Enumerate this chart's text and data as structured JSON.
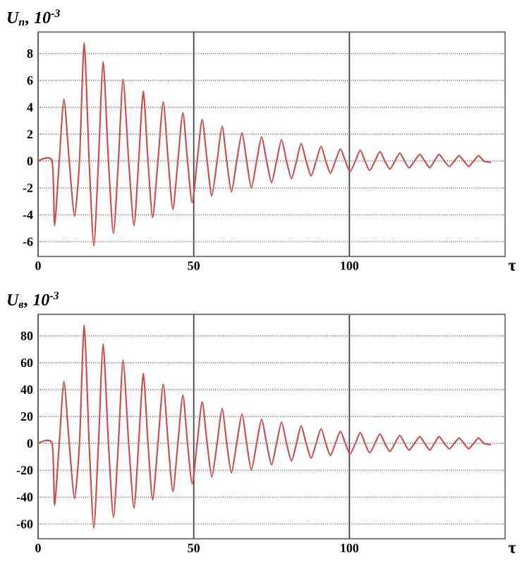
{
  "chart_data": [
    {
      "type": "line",
      "ylabel": "U$_{п}$, 10$^{-3}$",
      "xlabel": "τ",
      "xlim": [
        0,
        150
      ],
      "ylim": [
        -7.1,
        9.6
      ],
      "xticks": [
        0,
        50,
        100
      ],
      "yticks": [
        -6,
        -4,
        -2,
        0,
        2,
        4,
        6,
        8
      ],
      "grid": true,
      "x": [
        0,
        4.5,
        5.3,
        6.8,
        8.3,
        10.0,
        11.7,
        13.3,
        14.8,
        16.4,
        17.9,
        19.4,
        20.9,
        22.6,
        24.2,
        25.8,
        27.3,
        29.1,
        30.8,
        32.3,
        33.8,
        35.3,
        36.8,
        38.5,
        40.2,
        41.8,
        43.3,
        44.9,
        46.5,
        48.0,
        49.5,
        51.1,
        52.7,
        54.3,
        55.8,
        57.5,
        59.1,
        60.6,
        62.1,
        63.8,
        65.5,
        67.0,
        68.5,
        70.2,
        71.8,
        73.4,
        75,
        76.6,
        78.2,
        79.8,
        81.4,
        83.0,
        84.5,
        86.1,
        87.7,
        89.3,
        90.9,
        92.4,
        93.9,
        95.5,
        97.1,
        98.7,
        100.2,
        101.9,
        103.5,
        105.0,
        106.5,
        108.2,
        109.8,
        111.4,
        113,
        114.6,
        116.2,
        117.7,
        119.2,
        120.9,
        122.6,
        124.2,
        125.8,
        127.3,
        128.8,
        130.5,
        132.1,
        133.7,
        135.2,
        136.8,
        138.3,
        139.9,
        141.5,
        143.2,
        145.5
      ],
      "series": [
        {
          "color": "#c8504e",
          "values": [
            0,
            0,
            -4.8,
            0,
            4.6,
            0,
            -4.1,
            0,
            8.8,
            0,
            -6.3,
            0,
            7.4,
            0,
            -5.4,
            0,
            6.1,
            0,
            -4.8,
            0,
            5.2,
            0,
            -4.2,
            0,
            4.4,
            0,
            -3.6,
            0,
            3.6,
            0,
            -3.1,
            0,
            3.1,
            0,
            -2.6,
            0,
            2.6,
            0,
            -2.3,
            0,
            2.1,
            0,
            -2.0,
            0,
            1.8,
            0,
            -1.6,
            0,
            1.6,
            0,
            -1.3,
            0,
            1.3,
            0,
            -1.1,
            0,
            1.1,
            0,
            -0.9,
            0,
            0.9,
            0,
            -0.8,
            0,
            0.8,
            0,
            -0.7,
            0,
            0.7,
            0,
            -0.6,
            0,
            0.6,
            0,
            -0.5,
            0,
            0.5,
            0,
            -0.5,
            0,
            0.5,
            0,
            -0.4,
            0,
            0.4,
            0,
            -0.4,
            0,
            0.4,
            0,
            -0.1
          ]
        }
      ]
    },
    {
      "type": "line",
      "ylabel": "U$_{в}$, 10$^{-3}$",
      "xlabel": "τ",
      "xlim": [
        0,
        150
      ],
      "ylim": [
        -71,
        96
      ],
      "xticks": [
        0,
        50,
        100
      ],
      "yticks": [
        -60,
        -40,
        -20,
        0,
        20,
        40,
        60,
        80
      ],
      "grid": true,
      "x": [
        0,
        4.5,
        5.3,
        6.8,
        8.3,
        10.0,
        11.7,
        13.3,
        14.8,
        16.4,
        17.9,
        19.4,
        20.9,
        22.6,
        24.2,
        25.8,
        27.3,
        29.1,
        30.8,
        32.3,
        33.8,
        35.3,
        36.8,
        38.5,
        40.2,
        41.8,
        43.3,
        44.9,
        46.5,
        48.0,
        49.5,
        51.1,
        52.7,
        54.3,
        55.8,
        57.5,
        59.1,
        60.6,
        62.1,
        63.8,
        65.5,
        67.0,
        68.5,
        70.2,
        71.8,
        73.4,
        75,
        76.6,
        78.2,
        79.8,
        81.4,
        83.0,
        84.5,
        86.1,
        87.7,
        89.3,
        90.9,
        92.4,
        93.9,
        95.5,
        97.1,
        98.7,
        100.2,
        101.9,
        103.5,
        105.0,
        106.5,
        108.2,
        109.8,
        111.4,
        113,
        114.6,
        116.2,
        117.7,
        119.2,
        120.9,
        122.6,
        124.2,
        125.8,
        127.3,
        128.8,
        130.5,
        132.1,
        133.7,
        135.2,
        136.8,
        138.3,
        139.9,
        141.5,
        143.2,
        145.5
      ],
      "series": [
        {
          "color": "#c8504e",
          "values": [
            0,
            0,
            -46,
            0,
            46,
            0,
            -41,
            0,
            88,
            0,
            -63,
            0,
            74,
            0,
            -55,
            0,
            62,
            0,
            -48,
            0,
            52,
            0,
            -42,
            0,
            44,
            0,
            -36,
            0,
            36,
            0,
            -30,
            0,
            31,
            0,
            -25,
            0,
            26,
            0,
            -22,
            0,
            22,
            0,
            -20,
            0,
            18,
            0,
            -16,
            0,
            16,
            0,
            -13,
            0,
            13,
            0,
            -11,
            0,
            11,
            0,
            -9,
            0,
            9,
            0,
            -8,
            0,
            8,
            0,
            -7,
            0,
            7,
            0,
            -6,
            0,
            6,
            0,
            -5,
            0,
            5,
            0,
            -5,
            0,
            5,
            0,
            -4,
            0,
            4,
            0,
            -4,
            0,
            4,
            0,
            -1
          ]
        }
      ]
    }
  ]
}
